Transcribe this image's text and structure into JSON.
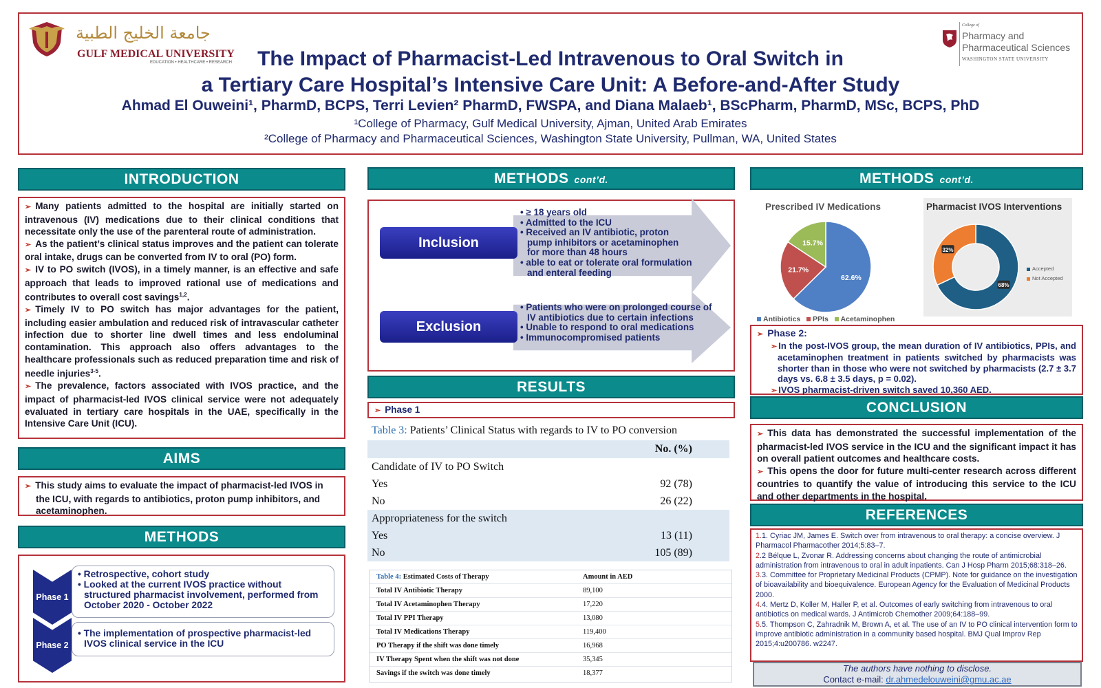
{
  "header": {
    "gmu_arabic": "جامعة الخليج الطبية",
    "gmu_name": "GULF MEDICAL UNIVERSITY",
    "gmu_tagline": "EDUCATION • HEALTHCARE • RESEARCH",
    "wsu_small": "College of",
    "wsu_name": "Pharmacy and Pharmaceutical Sciences",
    "wsu_university": "WASHINGTON STATE UNIVERSITY",
    "title_line1": "The Impact of Pharmacist-Led Intravenous to Oral Switch in",
    "title_line2": "a Tertiary Care Hospital’s Intensive Care Unit: A Before-and-After Study",
    "authors": "Ahmad El Ouweini¹, PharmD, BCPS, Terri Levien² PharmD, FWSPA, and Diana Malaeb¹, BScPharm, PharmD, MSc, BCPS, PhD",
    "affiliation1": "¹College of Pharmacy, Gulf Medical University, Ajman, United Arab Emirates",
    "affiliation2": "²College of Pharmacy and Pharmaceutical Sciences, Washington State University, Pullman, WA, United States"
  },
  "introduction": {
    "heading": "INTRODUCTION",
    "p1": "Many patients admitted to the hospital are initially started on intravenous (IV) medications due to their clinical conditions that necessitate only the use of the parenteral route of administration.",
    "p2": "As the patient’s clinical status improves and the patient can tolerate oral intake, drugs can be converted from IV to oral (PO) form.",
    "p3": "IV to PO switch (IVOS), in a timely manner, is an effective and safe approach that leads to improved rational use of medications and contributes to overall cost savings",
    "p3_sup": "1,2",
    "p4": "Timely IV to PO switch has major advantages for the patient, including easier ambulation and reduced risk of intravascular catheter infection due to shorter line dwell times and less endoluminal contamination. This approach also offers advantages to the healthcare professionals such as reduced preparation time and risk of needle injuries",
    "p4_sup": "3-5",
    "p5": "The prevalence, factors associated with IVOS practice, and the impact of pharmacist-led IVOS clinical service were not adequately evaluated in tertiary care hospitals in the UAE, specifically in the Intensive Care Unit (ICU)."
  },
  "aims": {
    "heading": "AIMS",
    "text": "This study aims to evaluate the impact of pharmacist-led IVOS in the ICU, with regards to antibiotics, proton pump inhibitors, and acetaminophen."
  },
  "methods": {
    "heading": "METHODS",
    "phase1_label": "Phase 1",
    "phase1_items": [
      "Retrospective, cohort study",
      "Looked at the current IVOS practice without structured pharmacist involvement, performed from October 2020 - October 2022"
    ],
    "phase2_label": "Phase 2",
    "phase2_items": [
      "The implementation of prospective pharmacist-led IVOS clinical service in the ICU"
    ]
  },
  "methods_contd": {
    "heading": "METHODS",
    "contd": "cont’d.",
    "inclusion_label": "Inclusion",
    "inclusion_items": [
      "≥ 18 years old",
      "Admitted to the ICU",
      "Received an IV antibiotic, proton pump inhibitors or acetaminophen for more than 48 hours",
      "able to eat or tolerate oral formulation and enteral feeding"
    ],
    "exclusion_label": "Exclusion",
    "exclusion_items": [
      "Patients who were on prolonged course of IV antibiotics due to certain infections",
      "Unable to respond to oral medications",
      "Immunocompromised patients"
    ]
  },
  "results": {
    "heading": "RESULTS",
    "phase1": "Phase 1",
    "table3": {
      "label": "Table 3:",
      "title": "Patients’ Clinical Status with regards to IV to PO conversion",
      "col": "No. (%)",
      "rows": [
        {
          "label": "Candidate of IV to PO Switch",
          "value": ""
        },
        {
          "label": "Yes",
          "value": "92 (78)"
        },
        {
          "label": "No",
          "value": "26 (22)"
        },
        {
          "label": "Appropriateness for the switch",
          "value": ""
        },
        {
          "label": "Yes",
          "value": "13 (11)"
        },
        {
          "label": "No",
          "value": "105 (89)"
        }
      ]
    },
    "table4": {
      "label": "Table 4:",
      "title": "Estimated Costs of Therapy",
      "col": "Amount in AED",
      "rows": [
        {
          "label": "Total IV Antibiotic Therapy",
          "value": "89,100"
        },
        {
          "label": "Total IV Acetaminophen Therapy",
          "value": "17,220"
        },
        {
          "label": "Total IV PPI Therapy",
          "value": "13,080"
        },
        {
          "label": "Total IV Medications Therapy",
          "value": "119,400"
        },
        {
          "label": "PO Therapy if the shift was done timely",
          "value": "16,968"
        },
        {
          "label": "IV Therapy Spent when the shift was not done",
          "value": "35,345"
        },
        {
          "label": "Savings if the switch was done timely",
          "value": "18,377"
        }
      ]
    }
  },
  "methods_contd2": {
    "heading": "METHODS",
    "contd": "cont’d."
  },
  "chart_data": [
    {
      "type": "pie",
      "title": "Prescribed IV Medications",
      "categories": [
        "Antibiotics",
        "PPIs",
        "Acetaminophen"
      ],
      "values": [
        62.6,
        21.7,
        15.7
      ],
      "labels": [
        "62.6%",
        "21.7%",
        "15.7%"
      ],
      "colors": [
        "#4f7fc4",
        "#c0504d",
        "#9bbb59"
      ],
      "legend": "bottom"
    },
    {
      "type": "pie",
      "title": "Pharmacist IVOS Interventions",
      "categories": [
        "Accepted",
        "Not Accepted"
      ],
      "values": [
        68,
        32
      ],
      "labels": [
        "68%",
        "32%"
      ],
      "colors": [
        "#1f5f86",
        "#ed7d31"
      ],
      "legend": "right"
    }
  ],
  "phase2": {
    "label": "Phase 2:",
    "p1": "In the post-IVOS group, the mean duration of IV antibiotics, PPIs, and acetaminophen treatment in patients switched by pharmacists was shorter than in those who were not switched by pharmacists (2.7 ± 3.7 days vs. 6.8 ± 3.5 days, p = 0.02).",
    "p2": "IVOS pharmacist-driven switch saved 10,360 AED."
  },
  "conclusion": {
    "heading": "CONCLUSION",
    "p1": "This data has demonstrated the successful implementation of the pharmacist-led IVOS service in the ICU and the significant impact it has on overall patient outcomes and healthcare costs.",
    "p2": "This opens the door for future multi-center research across different countries to quantify the value of introducing this service to the ICU and other departments in the hospital."
  },
  "references": {
    "heading": "REFERENCES",
    "items": [
      {
        "num": "1.",
        "text": "1. Cyriac JM, James E. Switch over from intravenous to oral therapy: a concise overview. J Pharmacol Pharmacother 2014;5:83–7."
      },
      {
        "num": "2",
        "text": ".2 Bélque L, Zvonar R. Addressing concerns about changing the route of antimicrobial administration from intravenous to oral in adult inpatients. Can J Hosp Pharm 2015;68:318–26."
      },
      {
        "num": "3.",
        "text": "3. Committee for Proprietary Medicinal Products (CPMP). Note for guidance on the investigation of bioavailability and bioequivalence. European Agency for the Evaluation of Medicinal Products 2000."
      },
      {
        "num": "4.",
        "text": "4. Mertz D, Koller M, Haller P, et al. Outcomes of early switching from intravenous to oral antibiotics on medical wards. J Antimicrob Chemother 2009;64:188–99."
      },
      {
        "num": "5.",
        "text": "5. Thompson C, Zahradnik M, Brown A, et al. The use of an IV to PO clinical intervention form to improve antibiotic administration in a community based hospital. BMJ Qual Improv Rep 2015;4:u200786. w2247."
      }
    ],
    "disclosure": "The authors have nothing to disclose.",
    "contact_label": "Contact e-mail:",
    "email": "dr.ahmedelouweini@gmu.ac.ae"
  }
}
